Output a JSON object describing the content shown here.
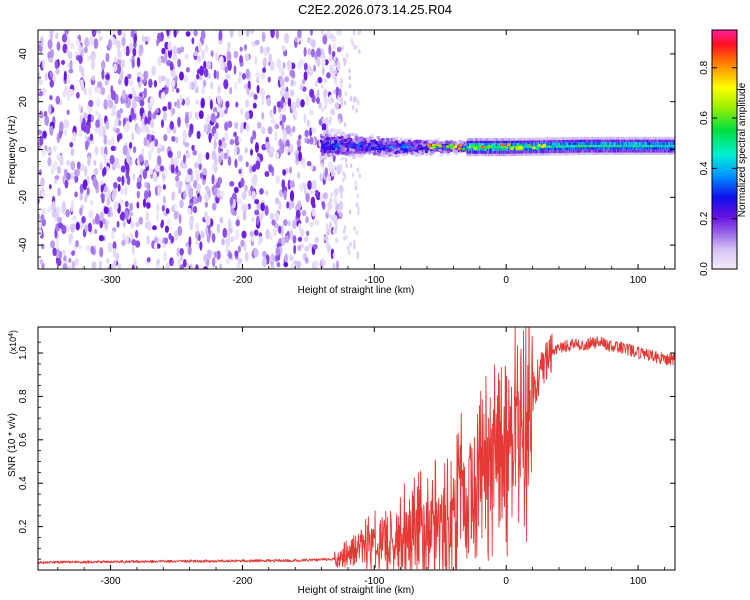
{
  "title": "C2E2.2026.073.14.25.R04",
  "chart_data": [
    {
      "type": "heatmap",
      "title": "C2E2.2026.073.14.25.R04",
      "xlabel": "Height of straight line (km)",
      "ylabel": "Frequency (Hz)",
      "xlim": [
        -355,
        128
      ],
      "ylim": [
        -50,
        50
      ],
      "xticks": [
        -300,
        -200,
        -100,
        0,
        100
      ],
      "xtick_labels": [
        "-300",
        "-200",
        "-100",
        "0",
        "100"
      ],
      "yticks": [
        -40,
        -20,
        0,
        20,
        40
      ],
      "ytick_labels": [
        "-40",
        "-20",
        "0",
        "20",
        "40"
      ],
      "colorbar": {
        "label": "Normalized spectral amplitude",
        "range": [
          0,
          0.95
        ],
        "ticks": [
          0.0,
          0.2,
          0.4,
          0.6,
          0.8
        ],
        "tick_labels": [
          "0.0",
          "0.2",
          "0.4",
          "0.6",
          "0.8"
        ]
      },
      "regions": [
        {
          "x_range": [
            -355,
            -140
          ],
          "y_range": [
            -50,
            50
          ],
          "description": "broadband noise",
          "amplitude": [
            0.0,
            0.12
          ]
        },
        {
          "x_range": [
            -140,
            -30
          ],
          "y_range": [
            -8,
            8
          ],
          "description": "spreading signal",
          "amplitude": [
            0.05,
            0.35
          ]
        },
        {
          "x_range": [
            -30,
            128
          ],
          "y_range": [
            -2,
            3
          ],
          "description": "narrow carrier",
          "amplitude": [
            0.15,
            0.6
          ]
        }
      ],
      "signal_center_hz": [
        [
          -140,
          2
        ],
        [
          -80,
          1
        ],
        [
          -40,
          1
        ],
        [
          0,
          1
        ],
        [
          60,
          1.5
        ],
        [
          128,
          1.5
        ]
      ]
    },
    {
      "type": "line",
      "xlabel": "Height of straight line (km)",
      "ylabel": "SNR (10 * v/v)",
      "scale_label_base": "(x10",
      "scale_label_exp": "4",
      "scale_label_tail": ")",
      "xlim": [
        -355,
        128
      ],
      "ylim": [
        0,
        1.12
      ],
      "xticks": [
        -300,
        -200,
        -100,
        0,
        100
      ],
      "xtick_labels": [
        "-300",
        "-200",
        "-100",
        "0",
        "100"
      ],
      "yticks": [
        0.2,
        0.4,
        0.6,
        0.8,
        1.0
      ],
      "ytick_labels": [
        "0.2",
        "0.4",
        "0.6",
        "0.8",
        "1.0"
      ],
      "color": "#e53935",
      "series": [
        {
          "name": "SNR",
          "x": [
            -355,
            -300,
            -250,
            -200,
            -150,
            -130,
            -110,
            -90,
            -70,
            -50,
            -40,
            -30,
            -20,
            -10,
            0,
            10,
            20,
            30,
            40,
            50,
            60,
            70,
            80,
            90,
            100,
            110,
            120,
            128
          ],
          "y": [
            0.035,
            0.038,
            0.04,
            0.042,
            0.045,
            0.05,
            0.1,
            0.14,
            0.16,
            0.2,
            0.25,
            0.35,
            0.42,
            0.48,
            0.55,
            0.62,
            0.82,
            0.97,
            1.02,
            1.04,
            1.04,
            1.05,
            1.03,
            1.02,
            1.0,
            0.99,
            0.97,
            0.97
          ]
        }
      ]
    }
  ]
}
